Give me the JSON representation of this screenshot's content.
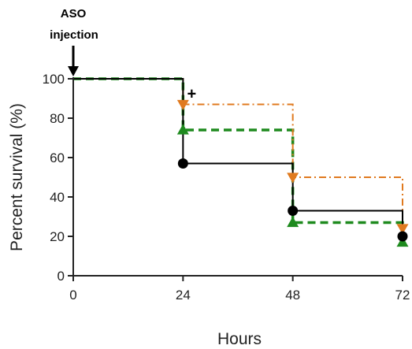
{
  "chart_data": {
    "type": "line",
    "subtype": "kaplan-meier-step",
    "title": "",
    "xlabel": "Hours",
    "ylabel": "Percent survival (%)",
    "xlim": [
      0,
      72
    ],
    "ylim": [
      0,
      100
    ],
    "x_ticks": [
      0,
      24,
      48,
      72
    ],
    "y_ticks": [
      0,
      20,
      40,
      60,
      80,
      100
    ],
    "x_tick_labels": [
      "0",
      "24",
      "48",
      "72"
    ],
    "y_tick_labels": [
      "0",
      "20",
      "40",
      "60",
      "80",
      "100"
    ],
    "grid": false,
    "legend": "none",
    "series": [
      {
        "color": "#e07a1f",
        "line_style": "dash-dot",
        "marker": "triangle-down",
        "x": [
          0,
          24,
          48,
          72
        ],
        "y": [
          100,
          87,
          50,
          24
        ]
      },
      {
        "color": "#1e8a1e",
        "line_style": "dashed",
        "marker": "triangle-up",
        "x": [
          0,
          24,
          48,
          72
        ],
        "y": [
          100,
          74,
          27,
          17
        ]
      },
      {
        "color": "#000000",
        "line_style": "solid",
        "marker": "circle",
        "x": [
          0,
          24,
          48,
          72
        ],
        "y": [
          100,
          57,
          33,
          20
        ]
      }
    ],
    "annotations": [
      {
        "text_line1": "ASO",
        "text_line2": "injection",
        "arrow": "down",
        "x": 0
      },
      {
        "text": "+",
        "x": 24,
        "y": 89
      }
    ]
  }
}
